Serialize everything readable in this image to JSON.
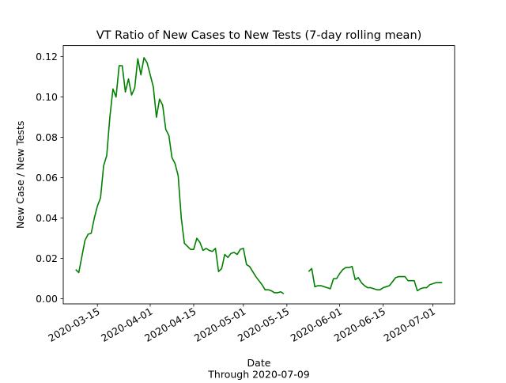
{
  "chart_data": {
    "type": "line",
    "title": "VT Ratio of New Cases to New Tests (7-day rolling mean)",
    "xlabel": "Date",
    "xlabel_sub": "Through 2020-07-09",
    "ylabel": "New Case / New Tests",
    "x_ticks": [
      "2020-03-15",
      "2020-04-01",
      "2020-04-15",
      "2020-05-01",
      "2020-05-15",
      "2020-06-01",
      "2020-06-15",
      "2020-07-01"
    ],
    "y_ticks": [
      "0.00",
      "0.02",
      "0.04",
      "0.06",
      "0.08",
      "0.10",
      "0.12"
    ],
    "xlim": [
      "2020-03-04",
      "2020-07-08"
    ],
    "ylim": [
      -0.0025,
      0.1255
    ],
    "line_color": "#008000",
    "grid": false,
    "series": [
      {
        "segments": [
          [
            [
              "2020-03-08",
              0.0145
            ],
            [
              "2020-03-09",
              0.013
            ],
            [
              "2020-03-10",
              0.021
            ],
            [
              "2020-03-11",
              0.029
            ],
            [
              "2020-03-12",
              0.032
            ],
            [
              "2020-03-13",
              0.0325
            ],
            [
              "2020-03-14",
              0.04
            ],
            [
              "2020-03-15",
              0.046
            ],
            [
              "2020-03-16",
              0.05
            ],
            [
              "2020-03-17",
              0.066
            ],
            [
              "2020-03-18",
              0.071
            ],
            [
              "2020-03-19",
              0.09
            ],
            [
              "2020-03-20",
              0.104
            ],
            [
              "2020-03-21",
              0.1
            ],
            [
              "2020-03-22",
              0.1155
            ],
            [
              "2020-03-23",
              0.1155
            ],
            [
              "2020-03-24",
              0.1025
            ],
            [
              "2020-03-25",
              0.109
            ],
            [
              "2020-03-26",
              0.101
            ],
            [
              "2020-03-27",
              0.1045
            ],
            [
              "2020-03-28",
              0.119
            ],
            [
              "2020-03-29",
              0.111
            ],
            [
              "2020-03-30",
              0.1195
            ],
            [
              "2020-03-31",
              0.117
            ],
            [
              "2020-04-01",
              0.111
            ],
            [
              "2020-04-02",
              0.105
            ],
            [
              "2020-04-03",
              0.09
            ],
            [
              "2020-04-04",
              0.099
            ],
            [
              "2020-04-05",
              0.096
            ],
            [
              "2020-04-06",
              0.084
            ],
            [
              "2020-04-07",
              0.081
            ],
            [
              "2020-04-08",
              0.07
            ],
            [
              "2020-04-09",
              0.067
            ],
            [
              "2020-04-10",
              0.061
            ],
            [
              "2020-04-11",
              0.04
            ],
            [
              "2020-04-12",
              0.0275
            ],
            [
              "2020-04-13",
              0.026
            ],
            [
              "2020-04-14",
              0.0245
            ],
            [
              "2020-04-15",
              0.0245
            ],
            [
              "2020-04-16",
              0.03
            ],
            [
              "2020-04-17",
              0.028
            ],
            [
              "2020-04-18",
              0.024
            ],
            [
              "2020-04-19",
              0.025
            ],
            [
              "2020-04-20",
              0.024
            ],
            [
              "2020-04-21",
              0.0235
            ],
            [
              "2020-04-22",
              0.025
            ],
            [
              "2020-04-23",
              0.0135
            ],
            [
              "2020-04-24",
              0.015
            ],
            [
              "2020-04-25",
              0.022
            ],
            [
              "2020-04-26",
              0.0205
            ],
            [
              "2020-04-27",
              0.0225
            ],
            [
              "2020-04-28",
              0.023
            ],
            [
              "2020-04-29",
              0.022
            ],
            [
              "2020-04-30",
              0.0245
            ],
            [
              "2020-05-01",
              0.025
            ],
            [
              "2020-05-02",
              0.017
            ],
            [
              "2020-05-03",
              0.016
            ],
            [
              "2020-05-04",
              0.0135
            ],
            [
              "2020-05-05",
              0.011
            ],
            [
              "2020-05-06",
              0.009
            ],
            [
              "2020-05-07",
              0.007
            ],
            [
              "2020-05-08",
              0.0045
            ],
            [
              "2020-05-09",
              0.0045
            ],
            [
              "2020-05-10",
              0.004
            ],
            [
              "2020-05-11",
              0.003
            ],
            [
              "2020-05-12",
              0.003
            ],
            [
              "2020-05-13",
              0.0035
            ],
            [
              "2020-05-14",
              0.0025
            ]
          ],
          [
            [
              "2020-05-22",
              0.0135
            ],
            [
              "2020-05-23",
              0.015
            ],
            [
              "2020-05-24",
              0.006
            ],
            [
              "2020-05-25",
              0.0065
            ],
            [
              "2020-05-26",
              0.0065
            ],
            [
              "2020-05-27",
              0.006
            ],
            [
              "2020-05-28",
              0.0055
            ],
            [
              "2020-05-29",
              0.005
            ],
            [
              "2020-05-30",
              0.01
            ],
            [
              "2020-05-31",
              0.01
            ],
            [
              "2020-06-01",
              0.0125
            ],
            [
              "2020-06-02",
              0.0145
            ],
            [
              "2020-06-03",
              0.0155
            ],
            [
              "2020-06-04",
              0.0155
            ],
            [
              "2020-06-05",
              0.016
            ],
            [
              "2020-06-06",
              0.0095
            ],
            [
              "2020-06-07",
              0.0105
            ],
            [
              "2020-06-08",
              0.008
            ],
            [
              "2020-06-09",
              0.0065
            ],
            [
              "2020-06-10",
              0.0055
            ],
            [
              "2020-06-11",
              0.0055
            ],
            [
              "2020-06-12",
              0.005
            ],
            [
              "2020-06-13",
              0.0045
            ],
            [
              "2020-06-14",
              0.0045
            ],
            [
              "2020-06-15",
              0.0055
            ],
            [
              "2020-06-16",
              0.006
            ],
            [
              "2020-06-17",
              0.0065
            ],
            [
              "2020-06-18",
              0.0085
            ],
            [
              "2020-06-19",
              0.0105
            ],
            [
              "2020-06-20",
              0.011
            ],
            [
              "2020-06-21",
              0.011
            ],
            [
              "2020-06-22",
              0.011
            ],
            [
              "2020-06-23",
              0.009
            ],
            [
              "2020-06-24",
              0.009
            ],
            [
              "2020-06-25",
              0.009
            ],
            [
              "2020-06-26",
              0.004
            ],
            [
              "2020-06-27",
              0.005
            ],
            [
              "2020-06-28",
              0.0055
            ],
            [
              "2020-06-29",
              0.0055
            ],
            [
              "2020-06-30",
              0.007
            ],
            [
              "2020-07-01",
              0.0075
            ],
            [
              "2020-07-02",
              0.008
            ],
            [
              "2020-07-03",
              0.008
            ],
            [
              "2020-07-04",
              0.008
            ]
          ]
        ]
      }
    ]
  }
}
